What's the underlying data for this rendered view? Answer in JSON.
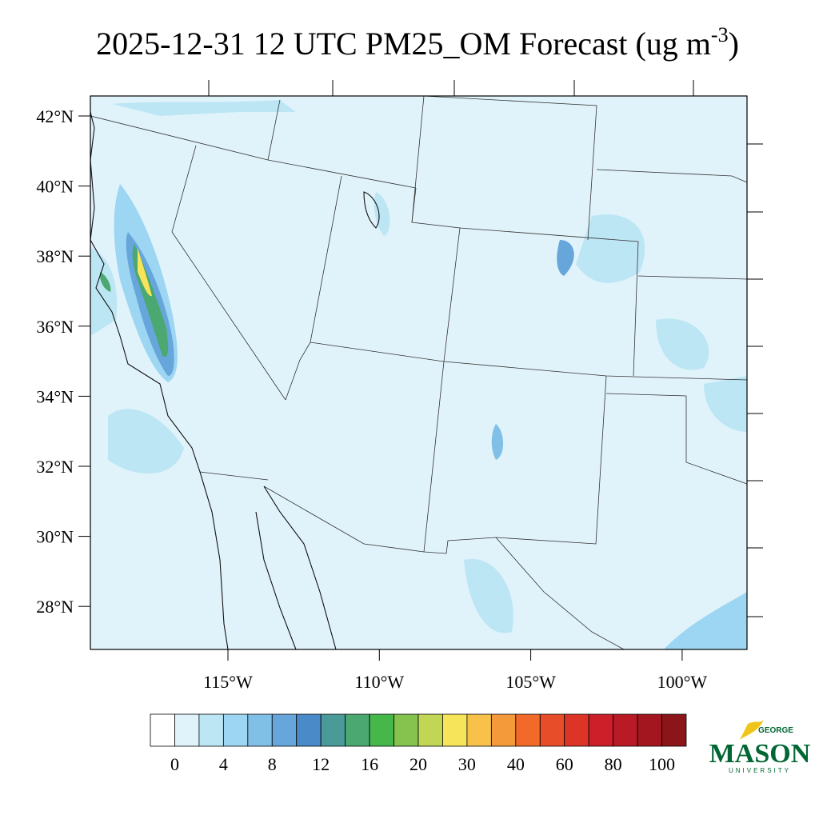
{
  "title": "2025-12-31 12 UTC PM25_OM Forecast (ug m",
  "title_superscript": "-3",
  "title_end": ")",
  "lat_labels": [
    "42°N",
    "40°N",
    "38°N",
    "36°N",
    "34°N",
    "32°N",
    "30°N",
    "28°N"
  ],
  "lon_labels": [
    "115°W",
    "110°W",
    "105°W",
    "100°W"
  ],
  "colorbar": {
    "colors": [
      "#ffffff",
      "#e0f3fb",
      "#bde6f5",
      "#9dd6f2",
      "#80bfe6",
      "#66a6db",
      "#4a8ac8",
      "#4a9a9a",
      "#4aa870",
      "#46b84a",
      "#86c24e",
      "#c0d654",
      "#f6e45a",
      "#f7c14a",
      "#f59a3a",
      "#f26a2a",
      "#e84d2a",
      "#dc3528",
      "#cc1f2a",
      "#b81a26",
      "#a3161f",
      "#8b1519"
    ],
    "labels": [
      0,
      4,
      8,
      12,
      16,
      20,
      30,
      40,
      60,
      80,
      100
    ]
  },
  "logo": {
    "top": "GEORGE",
    "main": "MASON",
    "bottom": "UNIVERSITY"
  }
}
